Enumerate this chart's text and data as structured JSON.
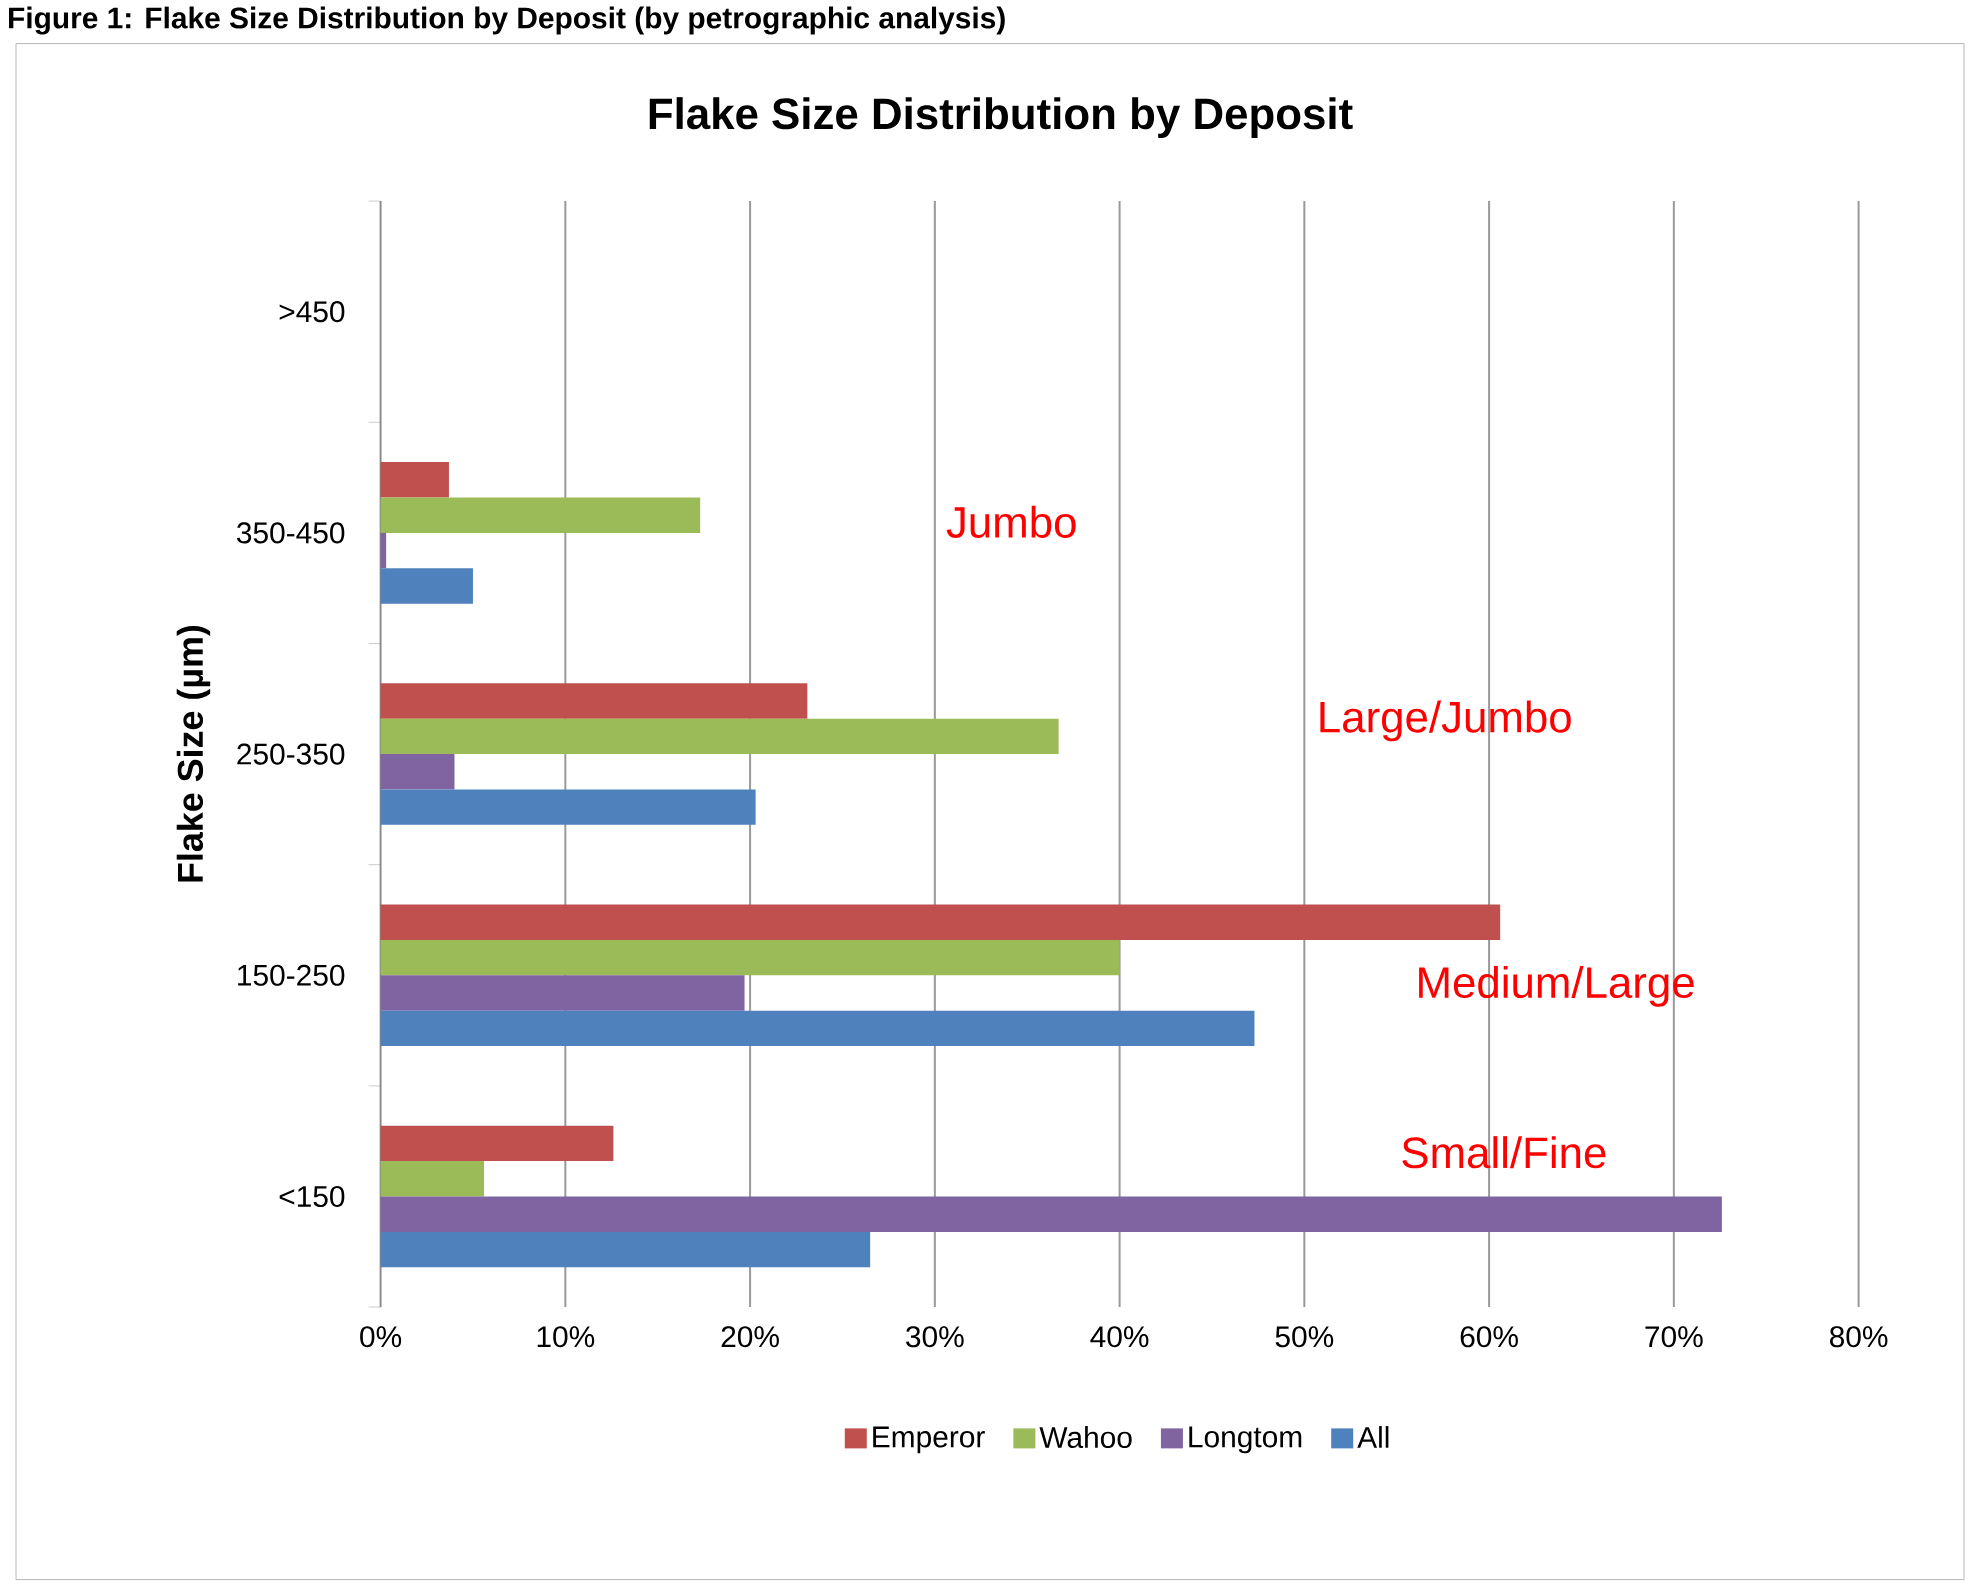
{
  "chart_data": {
    "type": "bar",
    "orientation": "horizontal",
    "title": "Flake Size Distribution by Deposit",
    "ylabel": "Flake Size (µm)",
    "categories": [
      ">450",
      "350-450",
      "250-350",
      "150-250",
      "<150"
    ],
    "series": [
      {
        "name": "Emperor",
        "color": "#c0504d",
        "values": [
          0,
          3.7,
          23.1,
          60.6,
          12.6
        ]
      },
      {
        "name": "Wahoo",
        "color": "#9bbb59",
        "values": [
          0,
          17.3,
          36.7,
          40.0,
          5.6
        ]
      },
      {
        "name": "Longtom",
        "color": "#8064a2",
        "values": [
          0,
          0.3,
          4.0,
          19.7,
          72.6
        ]
      },
      {
        "name": "All",
        "color": "#4f81bd",
        "values": [
          0,
          5.0,
          20.3,
          47.3,
          26.5
        ]
      }
    ],
    "xlim": [
      0,
      80
    ],
    "xticks": [
      {
        "value": 0,
        "label": "0%"
      },
      {
        "value": 10,
        "label": "10%"
      },
      {
        "value": 20,
        "label": "20%"
      },
      {
        "value": 30,
        "label": "30%"
      },
      {
        "value": 40,
        "label": "40%"
      },
      {
        "value": 50,
        "label": "50%"
      },
      {
        "value": 60,
        "label": "60%"
      },
      {
        "value": 70,
        "label": "70%"
      },
      {
        "value": 80,
        "label": "80%"
      }
    ],
    "grid": "x",
    "legend": "bottom",
    "annotations": [
      "Figure 1: Flake Size Distribution by Deposit (by petrographic analysis)",
      "Jumbo",
      "Large/Jumbo",
      "Medium/Large",
      "Small/Fine"
    ]
  }
}
